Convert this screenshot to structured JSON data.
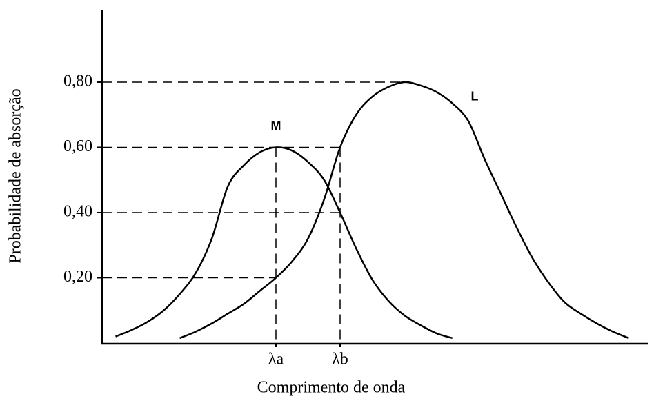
{
  "chart_data": {
    "type": "line",
    "xlabel": "Comprimento de onda",
    "ylabel": "Probabilidade de absorção",
    "categories": [
      null,
      null,
      null,
      null,
      null,
      null,
      null,
      null,
      null,
      null,
      "λa",
      null,
      null,
      null,
      "λb",
      null,
      null,
      null,
      null,
      null,
      null,
      null,
      null,
      null,
      null,
      null,
      null,
      null,
      null,
      null,
      null,
      null,
      null,
      null
    ],
    "series": [
      {
        "name": "M",
        "color": "#000000",
        "values": [
          0.02,
          0.04,
          0.065,
          0.1,
          0.15,
          0.215,
          0.32,
          0.48,
          0.545,
          0.585,
          0.6,
          0.59,
          0.555,
          0.5,
          0.4,
          0.29,
          0.195,
          0.13,
          0.085,
          0.055,
          0.03,
          0.015,
          null,
          null,
          null,
          null,
          null,
          null,
          null,
          null,
          null,
          null,
          null,
          null
        ]
      },
      {
        "name": "L",
        "color": "#000000",
        "values": [
          null,
          null,
          null,
          null,
          0.015,
          0.035,
          0.06,
          0.09,
          0.12,
          0.16,
          0.2,
          0.25,
          0.32,
          0.44,
          0.6,
          0.7,
          0.755,
          0.785,
          0.8,
          0.79,
          0.77,
          0.735,
          0.68,
          0.565,
          0.46,
          0.355,
          0.26,
          0.185,
          0.125,
          0.09,
          0.06,
          0.035,
          0.015,
          null
        ]
      }
    ],
    "ylim": [
      0,
      1.02
    ],
    "yticks": [
      {
        "value": 0.2,
        "label": "0,20"
      },
      {
        "value": 0.4,
        "label": "0,40"
      },
      {
        "value": 0.6,
        "label": "0,60"
      },
      {
        "value": 0.8,
        "label": "0,80"
      }
    ]
  }
}
